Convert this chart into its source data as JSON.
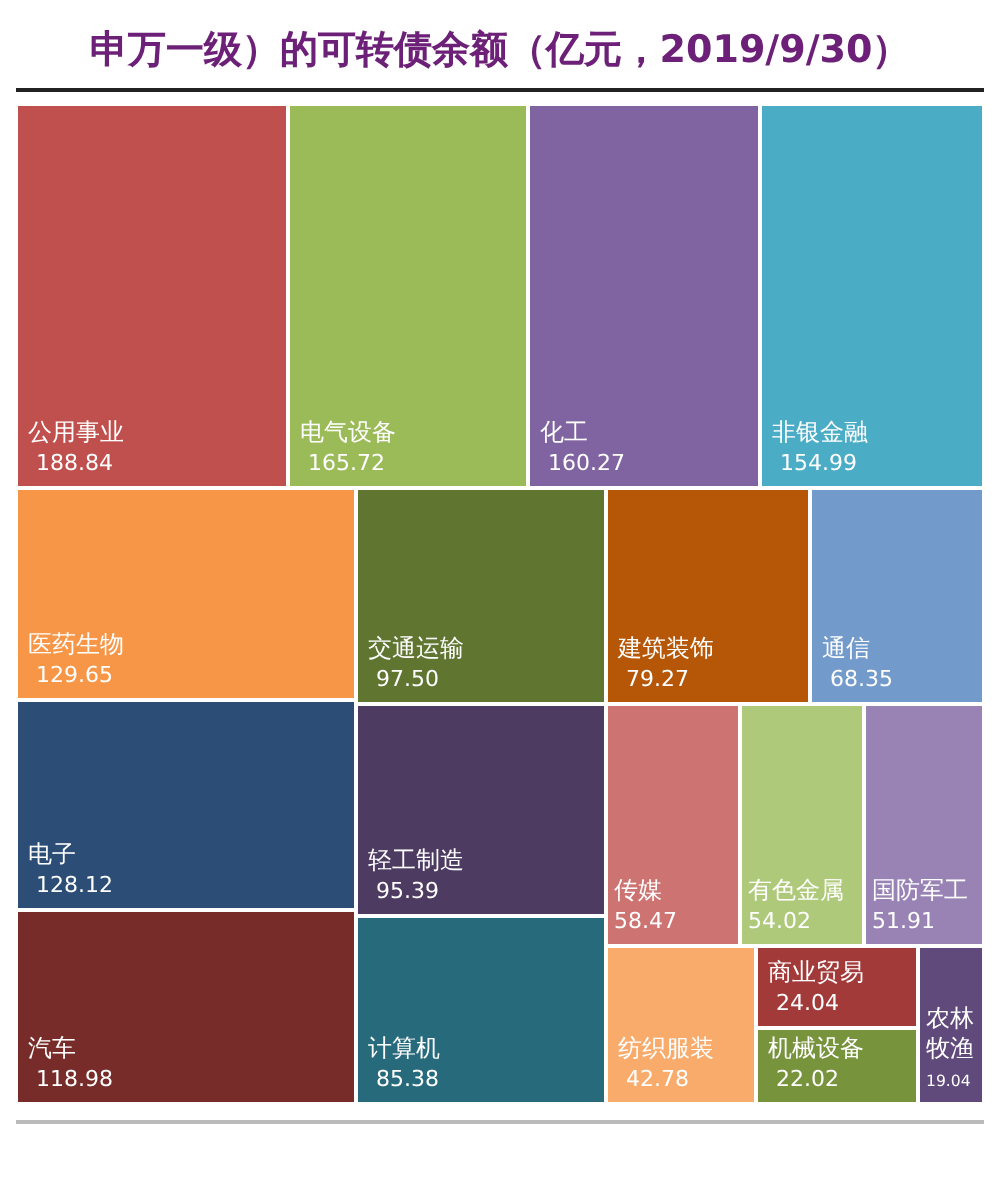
{
  "chart_data": {
    "type": "other",
    "title": "申万一级）的可转债余额（亿元，2019/9/30）",
    "categories": [
      "公用事业",
      "电气设备",
      "化工",
      "非银金融",
      "医药生物",
      "电子",
      "汽车",
      "交通运输",
      "轻工制造",
      "计算机",
      "建筑装饰",
      "通信",
      "传媒",
      "有色金属",
      "国防军工",
      "纺织服装",
      "商业贸易",
      "机械设备",
      "农林牧渔"
    ],
    "values": [
      188.84,
      165.72,
      160.27,
      154.99,
      129.65,
      128.12,
      118.98,
      97.5,
      95.39,
      85.38,
      79.27,
      68.35,
      58.47,
      54.02,
      51.91,
      42.78,
      24.04,
      22.02,
      19.04
    ],
    "value_labels": [
      "188.84",
      "165.72",
      "160.27",
      "154.99",
      "129.65",
      "128.12",
      "118.98",
      "97.50",
      "95.39",
      "85.38",
      "79.27",
      "68.35",
      "58.47",
      "54.02",
      "51.91",
      "42.78",
      "24.04",
      "22.02",
      "19.04"
    ],
    "colors": [
      "#c0504d",
      "#9bbb59",
      "#8064a2",
      "#4bacc6",
      "#f79646",
      "#2c4d75",
      "#772c2a",
      "#5f7530",
      "#4d3b62",
      "#276a7c",
      "#b65708",
      "#729aca",
      "#cd7371",
      "#afc97a",
      "#9983b5",
      "#f9ab6b",
      "#a33a3a",
      "#77933c",
      "#604a7b"
    ]
  }
}
